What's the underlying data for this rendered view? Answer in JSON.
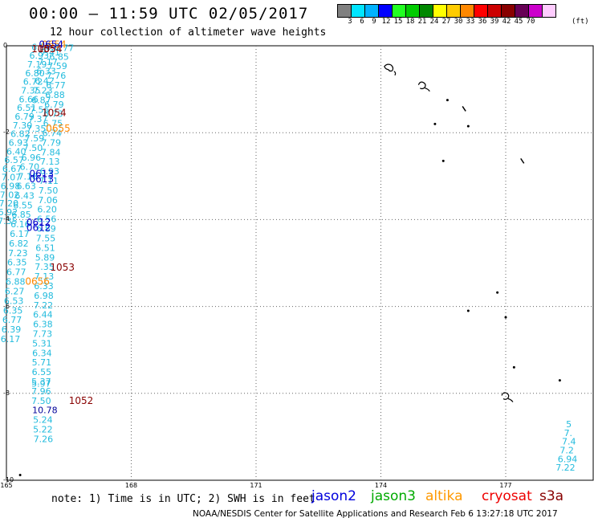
{
  "title": "00:00 – 11:59 UTC 02/05/2017",
  "subtitle": "12 hour collection of altimeter wave heights",
  "colorbar": {
    "colors": [
      "#808080",
      "#00e5ff",
      "#00b2ff",
      "#0000ff",
      "#22ff22",
      "#00cc00",
      "#008800",
      "#ffff00",
      "#ffcc00",
      "#ff8800",
      "#ff0000",
      "#cc0000",
      "#880000",
      "#660055",
      "#cc00cc",
      "#ffccff"
    ],
    "labels": [
      "3",
      "6",
      "9",
      "12",
      "15",
      "18",
      "21",
      "24",
      "27",
      "30",
      "33",
      "36",
      "39",
      "42",
      "45",
      "70"
    ],
    "unit": "(ft)"
  },
  "axes": {
    "x_ticks": [
      "165",
      "168",
      "171",
      "174",
      "177"
    ],
    "y_ticks": [
      "0",
      "-2",
      "-4",
      "-6",
      "-8",
      "-10"
    ],
    "x_range": [
      165,
      178.5
    ],
    "y_range": [
      -10,
      0
    ]
  },
  "tracks": [
    {
      "satellite": "jason3",
      "color": "#22bbdd",
      "points": [
        {
          "lon": 166.15,
          "lat": -0.12,
          "v": "6.77"
        },
        {
          "lon": 166.03,
          "lat": -0.32,
          "v": "6.85"
        },
        {
          "lon": 165.99,
          "lat": -0.54,
          "v": "7.59"
        },
        {
          "lon": 165.96,
          "lat": -0.76,
          "v": "7.76"
        },
        {
          "lon": 165.95,
          "lat": -0.98,
          "v": "6.77"
        },
        {
          "lon": 165.93,
          "lat": -1.2,
          "v": "6.88"
        },
        {
          "lon": 165.91,
          "lat": -1.42,
          "v": "6.79"
        },
        {
          "lon": 165.89,
          "lat": -1.64,
          "v": "6.73"
        },
        {
          "lon": 165.88,
          "lat": -1.86,
          "v": "6.75"
        },
        {
          "lon": 165.86,
          "lat": -2.08,
          "v": "6.74"
        },
        {
          "lon": 165.84,
          "lat": -2.3,
          "v": "7.79"
        },
        {
          "lon": 165.83,
          "lat": -2.52,
          "v": "7.84"
        },
        {
          "lon": 165.81,
          "lat": -2.74,
          "v": "7.13"
        },
        {
          "lon": 165.8,
          "lat": -2.96,
          "v": "6.93"
        },
        {
          "lon": 165.78,
          "lat": -3.18,
          "v": "7.11"
        },
        {
          "lon": 165.77,
          "lat": -3.4,
          "v": "7.50"
        },
        {
          "lon": 165.76,
          "lat": -3.62,
          "v": "7.06"
        },
        {
          "lon": 165.74,
          "lat": -3.84,
          "v": "6.20"
        },
        {
          "lon": 165.73,
          "lat": -4.06,
          "v": "6.56"
        },
        {
          "lon": 165.72,
          "lat": -4.28,
          "v": "6.89"
        },
        {
          "lon": 165.71,
          "lat": -4.5,
          "v": "7.55"
        },
        {
          "lon": 165.7,
          "lat": -4.72,
          "v": "6.51"
        },
        {
          "lon": 165.69,
          "lat": -4.94,
          "v": "5.89"
        },
        {
          "lon": 165.68,
          "lat": -5.16,
          "v": "7.35"
        },
        {
          "lon": 165.67,
          "lat": -5.38,
          "v": "7.13"
        },
        {
          "lon": 165.66,
          "lat": -5.6,
          "v": "6.33"
        },
        {
          "lon": 165.66,
          "lat": -5.82,
          "v": "6.98"
        },
        {
          "lon": 165.65,
          "lat": -6.04,
          "v": "7.22"
        },
        {
          "lon": 165.64,
          "lat": -6.26,
          "v": "6.44"
        },
        {
          "lon": 165.64,
          "lat": -6.48,
          "v": "6.38"
        },
        {
          "lon": 165.63,
          "lat": -6.7,
          "v": "7.73"
        },
        {
          "lon": 165.62,
          "lat": -6.92,
          "v": "5.31"
        },
        {
          "lon": 165.62,
          "lat": -7.14,
          "v": "6.34"
        },
        {
          "lon": 165.61,
          "lat": -7.36,
          "v": "5.71"
        },
        {
          "lon": 165.61,
          "lat": -7.58,
          "v": "6.55"
        },
        {
          "lon": 165.6,
          "lat": -7.8,
          "v": "5.37"
        },
        {
          "lon": 165.6,
          "lat": -7.85,
          "v": "5.97"
        },
        {
          "lon": 165.6,
          "lat": -8.02,
          "v": "7.96"
        },
        {
          "lon": 165.6,
          "lat": -8.24,
          "v": "7.50"
        },
        {
          "lon": 165.64,
          "lat": -8.68,
          "v": "5.24"
        },
        {
          "lon": 165.64,
          "lat": -8.9,
          "v": "5.22"
        },
        {
          "lon": 165.65,
          "lat": -9.12,
          "v": "7.26"
        }
      ]
    },
    {
      "satellite": "jason2",
      "color": "#000099",
      "points": [
        {
          "lon": 165.62,
          "lat": -8.46,
          "v": "10.78"
        }
      ]
    },
    {
      "satellite": "jason3",
      "color": "#22bbdd",
      "points": [
        {
          "lon": 165.82,
          "lat": -0.22,
          "v": "7.41"
        },
        {
          "lon": 165.76,
          "lat": -0.44,
          "v": "7.17"
        },
        {
          "lon": 165.72,
          "lat": -0.66,
          "v": "6.33"
        },
        {
          "lon": 165.68,
          "lat": -0.88,
          "v": "6.42"
        },
        {
          "lon": 165.64,
          "lat": -1.1,
          "v": "7.23"
        },
        {
          "lon": 165.6,
          "lat": -1.32,
          "v": "6.87"
        },
        {
          "lon": 165.56,
          "lat": -1.54,
          "v": "7.56"
        },
        {
          "lon": 165.52,
          "lat": -1.76,
          "v": "7.37"
        },
        {
          "lon": 165.48,
          "lat": -1.98,
          "v": "7.35"
        },
        {
          "lon": 165.44,
          "lat": -2.2,
          "v": "7.59"
        },
        {
          "lon": 165.4,
          "lat": -2.42,
          "v": "7.50"
        },
        {
          "lon": 165.36,
          "lat": -2.64,
          "v": "6.96"
        },
        {
          "lon": 165.32,
          "lat": -2.86,
          "v": "6.70"
        },
        {
          "lon": 165.28,
          "lat": -3.08,
          "v": "7.18"
        },
        {
          "lon": 165.24,
          "lat": -3.3,
          "v": "6.63"
        },
        {
          "lon": 165.2,
          "lat": -3.52,
          "v": "6.43"
        },
        {
          "lon": 165.16,
          "lat": -3.74,
          "v": "6.55"
        },
        {
          "lon": 165.12,
          "lat": -3.96,
          "v": "6.85"
        },
        {
          "lon": 165.1,
          "lat": -4.18,
          "v": "6.16"
        },
        {
          "lon": 165.08,
          "lat": -4.4,
          "v": "6.17"
        },
        {
          "lon": 165.06,
          "lat": -4.62,
          "v": "6.82"
        },
        {
          "lon": 165.04,
          "lat": -4.84,
          "v": "7.23"
        },
        {
          "lon": 165.02,
          "lat": -5.06,
          "v": "6.35"
        },
        {
          "lon": 165.0,
          "lat": -5.28,
          "v": "6.77"
        },
        {
          "lon": 164.98,
          "lat": -5.5,
          "v": "6.88"
        },
        {
          "lon": 164.96,
          "lat": -5.72,
          "v": "6.27"
        },
        {
          "lon": 164.94,
          "lat": -5.94,
          "v": "6.53"
        },
        {
          "lon": 164.92,
          "lat": -6.16,
          "v": "6.35"
        },
        {
          "lon": 164.9,
          "lat": -6.38,
          "v": "6.77"
        },
        {
          "lon": 164.88,
          "lat": -6.6,
          "v": "6.39"
        },
        {
          "lon": 164.86,
          "lat": -6.82,
          "v": "6.17"
        }
      ]
    },
    {
      "satellite": "jason3",
      "color": "#22bbdd",
      "points": [
        {
          "lon": 165.6,
          "lat": -0.1,
          "v": "6.56"
        },
        {
          "lon": 165.55,
          "lat": -0.3,
          "v": "6.93"
        },
        {
          "lon": 165.5,
          "lat": -0.5,
          "v": "7.19"
        },
        {
          "lon": 165.45,
          "lat": -0.7,
          "v": "6.80"
        },
        {
          "lon": 165.4,
          "lat": -0.9,
          "v": "6.72"
        },
        {
          "lon": 165.35,
          "lat": -1.1,
          "v": "7.35"
        },
        {
          "lon": 165.3,
          "lat": -1.3,
          "v": "6.66"
        },
        {
          "lon": 165.25,
          "lat": -1.5,
          "v": "6.51"
        },
        {
          "lon": 165.2,
          "lat": -1.7,
          "v": "6.79"
        },
        {
          "lon": 165.15,
          "lat": -1.9,
          "v": "7.30"
        },
        {
          "lon": 165.1,
          "lat": -2.1,
          "v": "6.82"
        },
        {
          "lon": 165.05,
          "lat": -2.3,
          "v": "6.93"
        },
        {
          "lon": 165.0,
          "lat": -2.5,
          "v": "6.40"
        },
        {
          "lon": 164.95,
          "lat": -2.7,
          "v": "6.57"
        },
        {
          "lon": 164.9,
          "lat": -2.9,
          "v": "6.67"
        },
        {
          "lon": 164.88,
          "lat": -3.1,
          "v": "7.07"
        },
        {
          "lon": 164.86,
          "lat": -3.3,
          "v": "6.98"
        },
        {
          "lon": 164.84,
          "lat": -3.5,
          "v": "7.02"
        },
        {
          "lon": 164.82,
          "lat": -3.7,
          "v": "7.20"
        },
        {
          "lon": 164.8,
          "lat": -3.9,
          "v": "6.92"
        },
        {
          "lon": 164.79,
          "lat": -4.1,
          "v": "7.35"
        }
      ]
    },
    {
      "satellite": "jason3",
      "color": "#22bbdd",
      "points": [
        {
          "lon": 178.45,
          "lat": -8.78,
          "v": "5"
        },
        {
          "lon": 178.4,
          "lat": -8.98,
          "v": "7."
        },
        {
          "lon": 178.35,
          "lat": -9.18,
          "v": "7.4"
        },
        {
          "lon": 178.3,
          "lat": -9.38,
          "v": "7.2"
        },
        {
          "lon": 178.25,
          "lat": -9.58,
          "v": "6.94"
        },
        {
          "lon": 178.2,
          "lat": -9.78,
          "v": "7.22"
        }
      ]
    }
  ],
  "time_labels": [
    {
      "lon": 165.85,
      "lat": -0.05,
      "t": "0654",
      "color": "#ff8800"
    },
    {
      "lon": 165.78,
      "lat": -0.05,
      "t": "0654",
      "color": "#0000cc"
    },
    {
      "lon": 165.6,
      "lat": -0.15,
      "t": "1055",
      "color": "#880000"
    },
    {
      "lon": 165.75,
      "lat": -0.15,
      "t": "1054",
      "color": "#880000"
    },
    {
      "lon": 165.85,
      "lat": -1.62,
      "t": "1054",
      "color": "#880000"
    },
    {
      "lon": 165.95,
      "lat": -1.98,
      "t": "0655",
      "color": "#ff8800"
    },
    {
      "lon": 165.55,
      "lat": -3.02,
      "t": "0613",
      "color": "#0000cc"
    },
    {
      "lon": 165.55,
      "lat": -3.14,
      "t": "0613",
      "color": "#0000cc"
    },
    {
      "lon": 165.48,
      "lat": -4.14,
      "t": "0612",
      "color": "#0000cc"
    },
    {
      "lon": 165.48,
      "lat": -4.26,
      "t": "0612",
      "color": "#0000cc"
    },
    {
      "lon": 166.05,
      "lat": -5.18,
      "t": "1053",
      "color": "#880000"
    },
    {
      "lon": 165.45,
      "lat": -5.5,
      "t": "0656",
      "color": "#ff8800"
    },
    {
      "lon": 166.5,
      "lat": -8.24,
      "t": "1052",
      "color": "#880000"
    }
  ],
  "islands": [
    {
      "lon": 174.2,
      "lat": -0.55,
      "shape": "cluster"
    },
    {
      "lon": 175.0,
      "lat": -0.9,
      "shape": "atoll"
    },
    {
      "lon": 175.6,
      "lat": -1.25,
      "shape": "dot"
    },
    {
      "lon": 176.0,
      "lat": -1.45,
      "shape": "dash"
    },
    {
      "lon": 175.3,
      "lat": -1.8,
      "shape": "dot"
    },
    {
      "lon": 176.1,
      "lat": -1.85,
      "shape": "dot"
    },
    {
      "lon": 175.5,
      "lat": -2.65,
      "shape": "dot"
    },
    {
      "lon": 177.4,
      "lat": -2.65,
      "shape": "dash"
    },
    {
      "lon": 176.8,
      "lat": -5.68,
      "shape": "dot"
    },
    {
      "lon": 176.1,
      "lat": -6.1,
      "shape": "dot"
    },
    {
      "lon": 177.0,
      "lat": -6.25,
      "shape": "dot"
    },
    {
      "lon": 177.2,
      "lat": -7.4,
      "shape": "dot"
    },
    {
      "lon": 178.3,
      "lat": -7.7,
      "shape": "dot"
    },
    {
      "lon": 177.0,
      "lat": -8.05,
      "shape": "atoll"
    },
    {
      "lon": 165.33,
      "lat": -9.88,
      "shape": "dot"
    }
  ],
  "note": "note: 1) Time is in UTC; 2) SWH is in feet",
  "satellites": [
    {
      "name": "jason2",
      "color": "#0000dd"
    },
    {
      "name": "jason3",
      "color": "#00aa00"
    },
    {
      "name": "altika",
      "color": "#ff9900"
    },
    {
      "name": "cryosat",
      "color": "#ee0000"
    },
    {
      "name": "s3a",
      "color": "#880000"
    }
  ],
  "footer": "NOAA/NESDIS Center for Satellite Applications and Research    Feb  6 13:27:18 UTC 2017"
}
